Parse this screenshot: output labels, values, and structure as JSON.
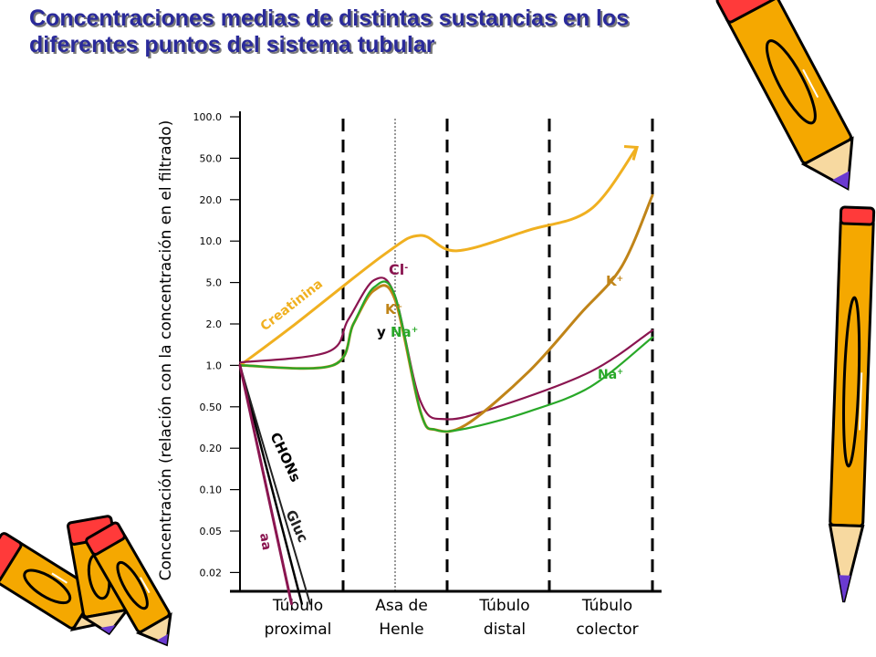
{
  "title": {
    "line1": "Concentraciones medias de distintas sustancias en los",
    "line2": "diferentes puntos del sistema tubular"
  },
  "chart_data": {
    "type": "line",
    "title": "Concentraciones medias de distintas sustancias en los diferentes puntos del sistema tubular",
    "ylabel": "Concentración (relación con la concentración en el filtrado)",
    "y_scale": "log",
    "y_ticks": [
      "100.0",
      "50.0",
      "20.0",
      "10.0",
      "5.0",
      "2.0",
      "1.0",
      "0.50",
      "0.20",
      "0.10",
      "0.05",
      "0.02"
    ],
    "regions": [
      {
        "line1": "Túbulo",
        "line2": "proximal"
      },
      {
        "line1": "Asa de",
        "line2": "Henle"
      },
      {
        "line1": "Túbulo",
        "line2": "distal"
      },
      {
        "line1": "Túbulo",
        "line2": "colector"
      }
    ],
    "x_range": [
      0,
      4
    ],
    "series": [
      {
        "name": "Creatinina",
        "color": "#f0b020",
        "points": [
          [
            0,
            1.0
          ],
          [
            0.5,
            1.9
          ],
          [
            1.4,
            8.0
          ],
          [
            1.75,
            11.0
          ],
          [
            2.1,
            8.5
          ],
          [
            2.8,
            12
          ],
          [
            3.4,
            17
          ],
          [
            3.85,
            60
          ]
        ],
        "arrow": true
      },
      {
        "name": "Cl-",
        "color": "#8a1550",
        "points": [
          [
            0,
            1.05
          ],
          [
            0.85,
            1.25
          ],
          [
            1.05,
            2.2
          ],
          [
            1.3,
            5.2
          ],
          [
            1.5,
            3.8
          ],
          [
            1.75,
            0.55
          ],
          [
            2.0,
            0.38
          ],
          [
            2.5,
            0.5
          ],
          [
            3.4,
            0.9
          ],
          [
            4,
            1.8
          ]
        ]
      },
      {
        "name": "K+",
        "color": "#c08418",
        "points": [
          [
            0,
            1.0
          ],
          [
            0.9,
            1.0
          ],
          [
            1.1,
            2.0
          ],
          [
            1.3,
            4.2
          ],
          [
            1.5,
            3.5
          ],
          [
            1.75,
            0.45
          ],
          [
            1.9,
            0.3
          ],
          [
            2.2,
            0.34
          ],
          [
            2.8,
            0.9
          ],
          [
            3.3,
            2.5
          ],
          [
            3.7,
            6.5
          ],
          [
            4,
            22
          ]
        ]
      },
      {
        "name": "Na+",
        "color": "#28a828",
        "points": [
          [
            0,
            1.0
          ],
          [
            0.9,
            1.0
          ],
          [
            1.1,
            2.0
          ],
          [
            1.3,
            4.5
          ],
          [
            1.5,
            3.8
          ],
          [
            1.75,
            0.45
          ],
          [
            1.9,
            0.3
          ],
          [
            2.2,
            0.31
          ],
          [
            2.8,
            0.45
          ],
          [
            3.4,
            0.7
          ],
          [
            4,
            1.6
          ]
        ]
      },
      {
        "name": "CHONs",
        "color": "#000000",
        "points": [
          [
            0,
            1.0
          ],
          [
            0.6,
            0.01
          ]
        ]
      },
      {
        "name": "Gluc",
        "color": "#222222",
        "points": [
          [
            0,
            1.0
          ],
          [
            0.68,
            0.01
          ]
        ]
      },
      {
        "name": "aa",
        "color": "#8a1550",
        "points": [
          [
            0,
            1.0
          ],
          [
            0.5,
            0.01
          ]
        ]
      }
    ],
    "annotations": [
      {
        "text": "Creatinina",
        "color": "#f0b020"
      },
      {
        "text": "Cl",
        "sup": "-",
        "color": "#8a1550"
      },
      {
        "text": "K",
        "sup": "+",
        "color": "#c08418"
      },
      {
        "text": "y",
        "color": "#000000"
      },
      {
        "text": "Na",
        "sup": "+",
        "color": "#28a828"
      },
      {
        "text": "K",
        "sup": "+",
        "color": "#c08418"
      },
      {
        "text": "Na",
        "sup": "+",
        "color": "#28a828"
      },
      {
        "text": "CHONs",
        "color": "#000000"
      },
      {
        "text": "Gluc",
        "color": "#222222"
      },
      {
        "text": "aa",
        "color": "#8a1550"
      }
    ]
  },
  "decorations": {
    "icon": "pencil-icon",
    "color": "#f5a800"
  }
}
